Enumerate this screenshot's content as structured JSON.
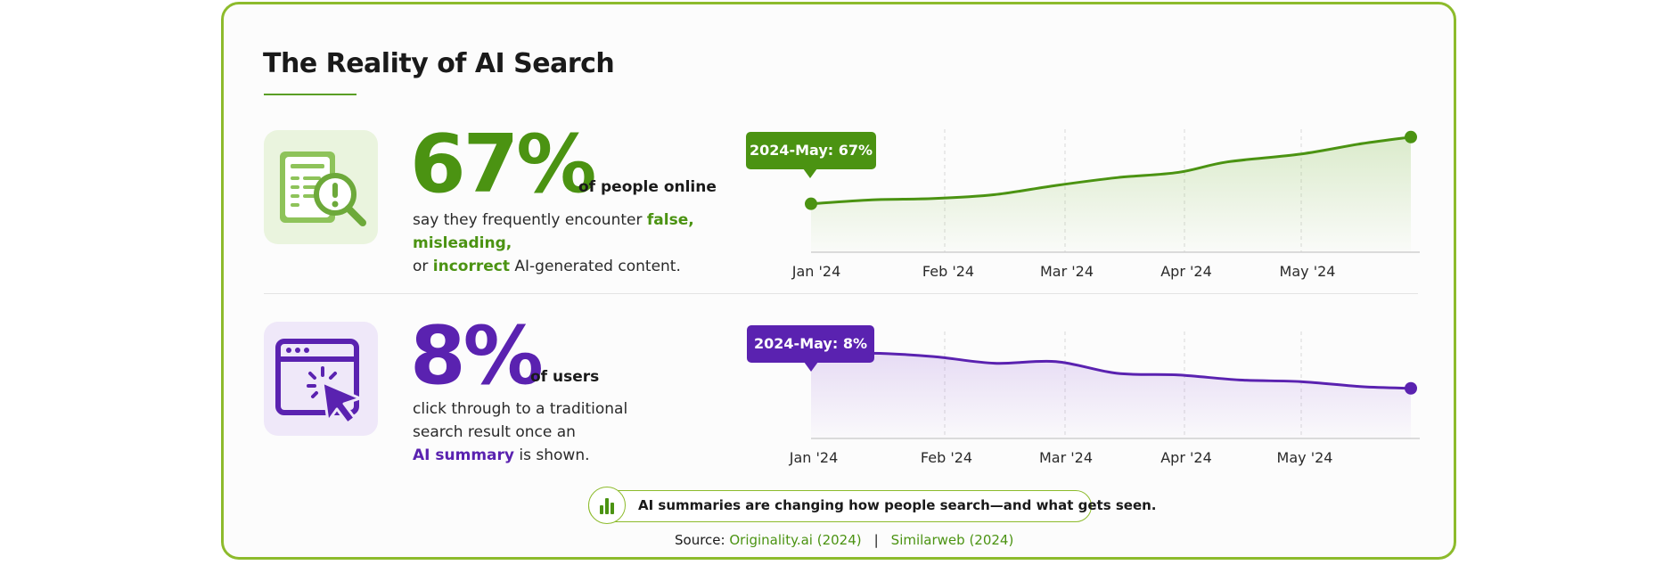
{
  "title": "The Reality of AI Search",
  "colors": {
    "accent_green": "#4b9312",
    "accent_purple": "#5a22b0",
    "border": "#8dbb2c"
  },
  "stat1": {
    "value": "67%",
    "suffix": "of people online",
    "desc_pre": "say they frequently encounter ",
    "desc_hl1": "false, misleading,",
    "desc_mid": "or ",
    "desc_hl2": "incorrect",
    "desc_post": " AI-generated content.",
    "icon": "document-magnifier-alert-icon",
    "callout": "2024-May: 67%"
  },
  "stat2": {
    "value": "8%",
    "suffix": "of users",
    "desc_pre": "click through to a traditional search result once an",
    "desc_hl": "AI summary",
    "desc_post": " is shown.",
    "icon": "browser-cursor-click-icon",
    "callout": "2024-May: 8%"
  },
  "chart_data": [
    {
      "type": "area",
      "x": [
        "Jan '24",
        "Feb '24",
        "Mar '24",
        "Apr '24",
        "May '24"
      ],
      "series": [
        {
          "values": [
            {
              "x": 0.0,
              "y": 41.5
            },
            {
              "x": 0.5,
              "y": 43.0
            },
            {
              "x": 1.0,
              "y": 43.5
            },
            {
              "x": 1.5,
              "y": 45.0
            },
            {
              "x": 2.0,
              "y": 48.5
            },
            {
              "x": 2.5,
              "y": 51.5
            },
            {
              "x": 3.0,
              "y": 53.5
            },
            {
              "x": 3.4,
              "y": 57.5
            },
            {
              "x": 4.0,
              "y": 60.5
            },
            {
              "x": 4.5,
              "y": 64.5
            },
            {
              "x": 4.9,
              "y": 67.0
            }
          ]
        }
      ],
      "ylim": [
        23,
        70
      ],
      "grid": "vertical dashed",
      "highlight": {
        "label": "2024-May: 67%",
        "value": 67
      }
    },
    {
      "type": "area",
      "x": [
        "Jan '24",
        "Feb '24",
        "Mar '24",
        "Apr '24",
        "May '24"
      ],
      "series": [
        {
          "values": [
            {
              "x": 0.0,
              "y": 10.0
            },
            {
              "x": 0.5,
              "y": 10.1
            },
            {
              "x": 1.0,
              "y": 9.9
            },
            {
              "x": 1.5,
              "y": 9.5
            },
            {
              "x": 2.0,
              "y": 9.6
            },
            {
              "x": 2.5,
              "y": 8.9
            },
            {
              "x": 3.0,
              "y": 8.8
            },
            {
              "x": 3.5,
              "y": 8.5
            },
            {
              "x": 4.0,
              "y": 8.4
            },
            {
              "x": 4.5,
              "y": 8.1
            },
            {
              "x": 4.9,
              "y": 8.0
            }
          ]
        }
      ],
      "ylim": [
        5,
        11.4
      ],
      "grid": "vertical dashed",
      "highlight": {
        "label": "2024-May: 8%",
        "value": 8
      }
    }
  ],
  "footer": {
    "note": "AI summaries are changing how people search—and what gets seen.",
    "note_icon": "bar-chart-icon",
    "source_label": "Source: ",
    "source1": "Originality.ai (2024)",
    "separator": "|",
    "source2": "Similarweb (2024)"
  }
}
